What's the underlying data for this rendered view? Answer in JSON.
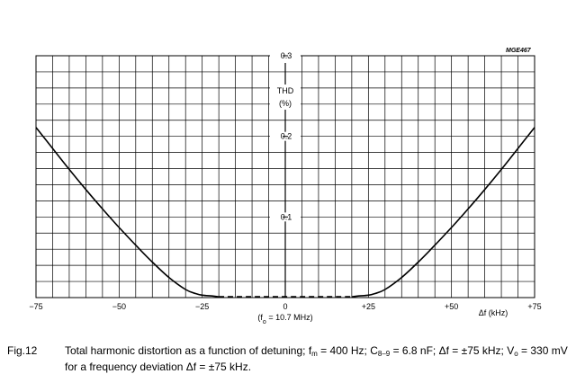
{
  "figure_ref": "MGE467",
  "chart_data": {
    "type": "line",
    "xlim": [
      -75,
      75
    ],
    "ylim": [
      0,
      0.3
    ],
    "grid": true,
    "x_ticks": [
      -75,
      -50,
      -25,
      0,
      25,
      50,
      75
    ],
    "x_tick_labels": [
      "−75",
      "−50",
      "−25",
      "0",
      "+25",
      "+50",
      "+75"
    ],
    "y_ticks": [
      0.1,
      0.2,
      0.3
    ],
    "y_tick_labels": [
      "0.1",
      "0.2",
      "0.3"
    ],
    "ylabel_line1": "THD",
    "ylabel_line2": "(%)",
    "xlabel": "Δf (kHz)",
    "center_note": "(f",
    "center_note_sub": "o",
    "center_note_rest": " = 10.7 MHz)",
    "series": [
      {
        "style": "solid",
        "x": [
          -75,
          -70,
          -65,
          -60,
          -55,
          -50,
          -45,
          -40,
          -35,
          -30,
          -27,
          -25,
          -22,
          -20
        ],
        "y": [
          0.211,
          0.185,
          0.159,
          0.134,
          0.11,
          0.087,
          0.065,
          0.044,
          0.025,
          0.01,
          0.005,
          0.003,
          0.002,
          0.001
        ]
      },
      {
        "style": "dashed",
        "x": [
          -20,
          20
        ],
        "y": [
          0.001,
          0.001
        ]
      },
      {
        "style": "solid",
        "x": [
          20,
          22,
          25,
          27,
          30,
          35,
          40,
          45,
          50,
          55,
          60,
          65,
          70,
          75
        ],
        "y": [
          0.001,
          0.002,
          0.003,
          0.005,
          0.01,
          0.025,
          0.044,
          0.065,
          0.087,
          0.11,
          0.134,
          0.159,
          0.185,
          0.211
        ]
      }
    ]
  },
  "caption": {
    "label": "Fig.12",
    "line1_a": "Total harmonic distortion as a function of detuning; f",
    "line1_sub1": "m",
    "line1_b": " = 400 Hz; C",
    "line1_sub2": "8–9",
    "line1_c": " = 6.8 nF; Δf = ±75 kHz; V",
    "line1_sub3": "o",
    "line1_d": " = 330 mV",
    "line2": "for a frequency deviation Δf = ±75 kHz."
  }
}
